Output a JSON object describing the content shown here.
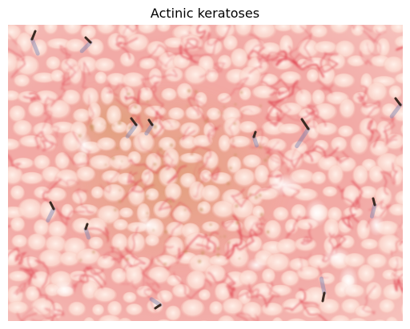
{
  "figure": {
    "title": "Actinic keratoses"
  },
  "image": {
    "subject": "dermoscopy-skin-lesion",
    "colors": {
      "base": "#f0a4a0",
      "globule": "#fbe0d2",
      "vessel": "#e0404e",
      "pigment": "#c58c58",
      "hair": "#3a2a22"
    }
  }
}
